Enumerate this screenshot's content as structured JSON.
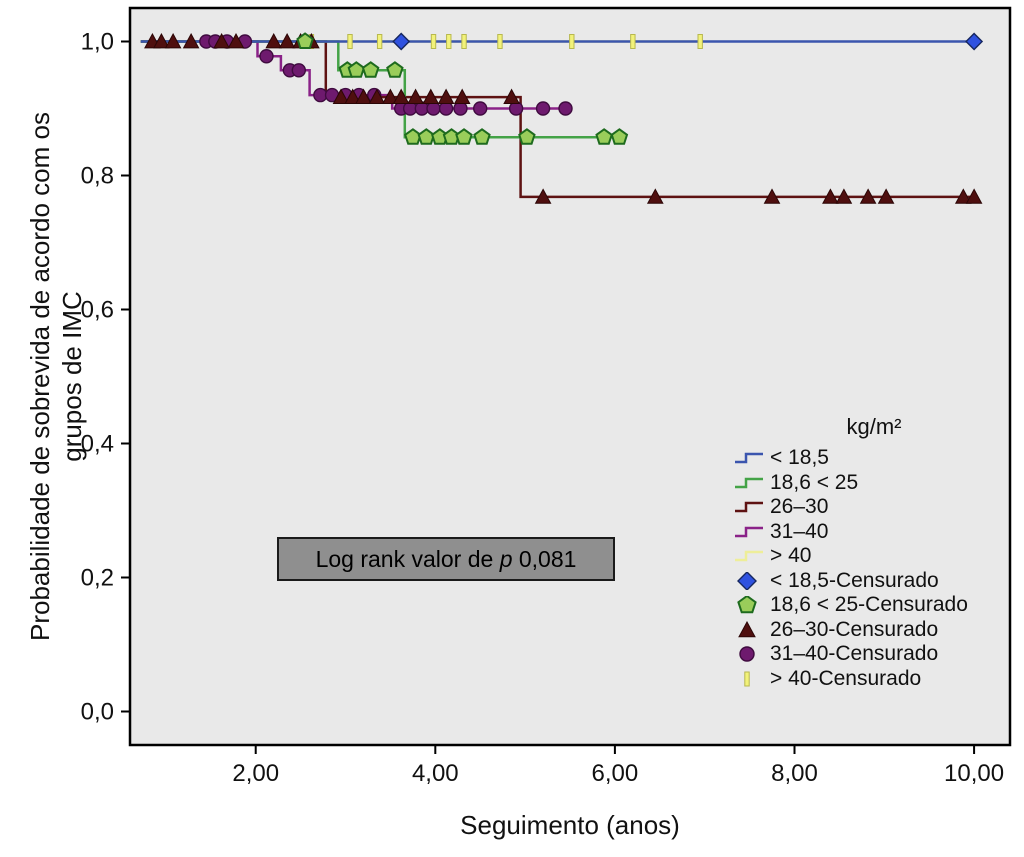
{
  "chart_data": {
    "type": "line",
    "subtype": "kaplan_meier_step",
    "title": "",
    "xlabel": "Seguimento (anos)",
    "ylabel": "Probabilidade de sobrevida de acordo com os grupos de IMC",
    "ylabel_lines": [
      "Probabilidade de sobrevida de acordo com os",
      "grupos de IMC"
    ],
    "xlim": [
      0.6,
      10.4
    ],
    "ylim": [
      -0.05,
      1.05
    ],
    "xticks": [
      2,
      4,
      6,
      8,
      10
    ],
    "xtick_labels": [
      "2,00",
      "4,00",
      "6,00",
      "8,00",
      "10,00"
    ],
    "yticks": [
      0,
      0.2,
      0.4,
      0.6,
      0.8,
      1
    ],
    "ytick_labels": [
      "0,0",
      "0,2",
      "0,4",
      "0,6",
      "0,8",
      "1,0"
    ],
    "grid": false,
    "plot_bg": "#e9e9e9",
    "legend_title": "kg/m²",
    "legend_position": "inside-right",
    "annotation": {
      "prefix": "Log rank valor de ",
      "p_label": "p",
      "value": " 0,081"
    },
    "series": [
      {
        "label": "< 18,5",
        "censored_label": "< 18,5-Censurado",
        "color": "#3b55ae",
        "marker": "diamond",
        "marker_fill": "#2f52e0",
        "marker_stroke": "#16275f",
        "steps": [
          [
            0.72,
            1.0
          ],
          [
            10.0,
            1.0
          ]
        ],
        "censored": [
          [
            3.62,
            1.0
          ],
          [
            10.0,
            1.0
          ]
        ]
      },
      {
        "label": "18,6 < 25",
        "censored_label": "18,6 < 25-Censurado",
        "color": "#44a347",
        "marker": "pentagon",
        "marker_fill": "#9acd5a",
        "marker_stroke": "#1e6b1e",
        "steps": [
          [
            0.72,
            1.0
          ],
          [
            2.92,
            1.0
          ],
          [
            2.92,
            0.957
          ],
          [
            3.66,
            0.957
          ],
          [
            3.66,
            0.857
          ],
          [
            6.12,
            0.857
          ]
        ],
        "censored": [
          [
            2.55,
            1.0
          ],
          [
            3.02,
            0.957
          ],
          [
            3.12,
            0.957
          ],
          [
            3.28,
            0.957
          ],
          [
            3.55,
            0.957
          ],
          [
            3.75,
            0.857
          ],
          [
            3.9,
            0.857
          ],
          [
            4.05,
            0.857
          ],
          [
            4.18,
            0.857
          ],
          [
            4.32,
            0.857
          ],
          [
            4.52,
            0.857
          ],
          [
            5.02,
            0.857
          ],
          [
            5.88,
            0.857
          ],
          [
            6.05,
            0.857
          ]
        ]
      },
      {
        "label": "26–30",
        "censored_label": "26–30-Censurado",
        "color": "#5e1212",
        "marker": "triangle",
        "marker_fill": "#4f0f0f",
        "marker_stroke": "#2b0606",
        "steps": [
          [
            0.72,
            1.0
          ],
          [
            2.78,
            1.0
          ],
          [
            2.78,
            0.917
          ],
          [
            4.95,
            0.917
          ],
          [
            4.95,
            0.768
          ],
          [
            10.0,
            0.768
          ]
        ],
        "censored": [
          [
            0.85,
            1.0
          ],
          [
            0.95,
            1.0
          ],
          [
            1.08,
            1.0
          ],
          [
            1.28,
            1.0
          ],
          [
            1.62,
            1.0
          ],
          [
            1.78,
            1.0
          ],
          [
            2.2,
            1.0
          ],
          [
            2.35,
            1.0
          ],
          [
            2.5,
            1.0
          ],
          [
            2.62,
            1.0
          ],
          [
            2.95,
            0.917
          ],
          [
            3.08,
            0.917
          ],
          [
            3.2,
            0.917
          ],
          [
            3.35,
            0.917
          ],
          [
            3.5,
            0.917
          ],
          [
            3.62,
            0.917
          ],
          [
            3.78,
            0.917
          ],
          [
            3.95,
            0.917
          ],
          [
            4.12,
            0.917
          ],
          [
            4.3,
            0.917
          ],
          [
            4.85,
            0.917
          ],
          [
            5.2,
            0.768
          ],
          [
            6.45,
            0.768
          ],
          [
            7.75,
            0.768
          ],
          [
            8.4,
            0.768
          ],
          [
            8.55,
            0.768
          ],
          [
            8.82,
            0.768
          ],
          [
            9.02,
            0.768
          ],
          [
            9.88,
            0.768
          ],
          [
            10.0,
            0.768
          ]
        ]
      },
      {
        "label": "31–40",
        "censored_label": "31–40-Censurado",
        "color": "#8a2288",
        "marker": "circle",
        "marker_fill": "#6e1a6e",
        "marker_stroke": "#3f0b3f",
        "steps": [
          [
            0.72,
            1.0
          ],
          [
            2.02,
            1.0
          ],
          [
            2.02,
            0.978
          ],
          [
            2.28,
            0.978
          ],
          [
            2.28,
            0.957
          ],
          [
            2.6,
            0.957
          ],
          [
            2.6,
            0.92
          ],
          [
            3.52,
            0.92
          ],
          [
            3.52,
            0.9
          ],
          [
            5.45,
            0.9
          ]
        ],
        "censored": [
          [
            1.45,
            1.0
          ],
          [
            1.55,
            1.0
          ],
          [
            1.68,
            1.0
          ],
          [
            1.88,
            1.0
          ],
          [
            2.12,
            0.978
          ],
          [
            2.38,
            0.957
          ],
          [
            2.48,
            0.957
          ],
          [
            2.72,
            0.92
          ],
          [
            2.85,
            0.92
          ],
          [
            3.0,
            0.92
          ],
          [
            3.15,
            0.92
          ],
          [
            3.32,
            0.92
          ],
          [
            3.62,
            0.9
          ],
          [
            3.72,
            0.9
          ],
          [
            3.85,
            0.9
          ],
          [
            3.98,
            0.9
          ],
          [
            4.12,
            0.9
          ],
          [
            4.28,
            0.9
          ],
          [
            4.5,
            0.9
          ],
          [
            4.9,
            0.9
          ],
          [
            5.2,
            0.9
          ],
          [
            5.45,
            0.9
          ]
        ]
      },
      {
        "label": "> 40",
        "censored_label": "> 40-Censurado",
        "color": "#eeee99",
        "marker": "vbar",
        "marker_fill": "#f2f27a",
        "marker_stroke": "#b8b84e",
        "steps": [
          [
            0.72,
            1.0
          ],
          [
            6.95,
            1.0
          ]
        ],
        "censored": [
          [
            2.62,
            1.0
          ],
          [
            3.05,
            1.0
          ],
          [
            3.38,
            1.0
          ],
          [
            3.98,
            1.0
          ],
          [
            4.15,
            1.0
          ],
          [
            4.32,
            1.0
          ],
          [
            4.72,
            1.0
          ],
          [
            5.52,
            1.0
          ],
          [
            6.2,
            1.0
          ],
          [
            6.95,
            1.0
          ]
        ]
      }
    ]
  }
}
